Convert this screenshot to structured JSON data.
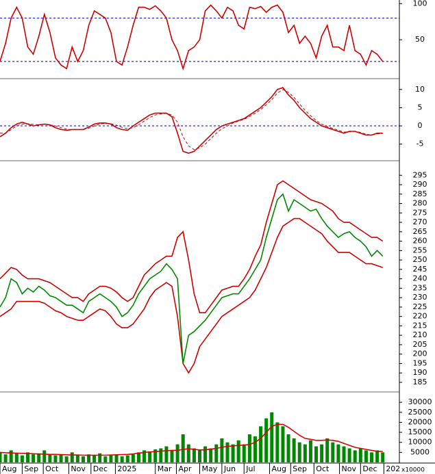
{
  "chart_data": [
    {
      "type": "line",
      "x": [
        0,
        5,
        10,
        15,
        20,
        25,
        30,
        35,
        40,
        45,
        50,
        55,
        60,
        65,
        70,
        75,
        80,
        85,
        90,
        95,
        100,
        105,
        110,
        115,
        120,
        125,
        130,
        135,
        140,
        145,
        150,
        155,
        160,
        165,
        170,
        175,
        180,
        185,
        190,
        195,
        200,
        205,
        210,
        215,
        220,
        225,
        230,
        235,
        240,
        245,
        250,
        255,
        260,
        265,
        270,
        275,
        280,
        285,
        290,
        295,
        300,
        305,
        310,
        315,
        320,
        325,
        330,
        335,
        340,
        345
      ],
      "xlim": [
        0,
        360
      ],
      "ylim": [
        0,
        105
      ],
      "yticks": [
        50,
        100
      ],
      "levels": [
        80,
        20
      ],
      "series": [
        {
          "color": "#cc0000",
          "values": [
            20,
            45,
            80,
            95,
            80,
            40,
            30,
            55,
            85,
            60,
            25,
            15,
            10,
            40,
            20,
            35,
            70,
            90,
            85,
            80,
            60,
            20,
            15,
            40,
            70,
            95,
            95,
            92,
            97,
            90,
            80,
            50,
            35,
            10,
            35,
            40,
            50,
            90,
            98,
            90,
            80,
            95,
            90,
            70,
            65,
            95,
            93,
            96,
            88,
            95,
            98,
            88,
            60,
            70,
            45,
            55,
            45,
            25,
            55,
            70,
            40,
            40,
            35,
            70,
            35,
            30,
            15,
            35,
            30,
            20
          ]
        }
      ]
    },
    {
      "type": "line",
      "x": [
        0,
        5,
        10,
        15,
        20,
        25,
        30,
        35,
        40,
        45,
        50,
        55,
        60,
        65,
        70,
        75,
        80,
        85,
        90,
        95,
        100,
        105,
        110,
        115,
        120,
        125,
        130,
        135,
        140,
        145,
        150,
        155,
        160,
        165,
        170,
        175,
        180,
        185,
        190,
        195,
        200,
        205,
        210,
        215,
        220,
        225,
        230,
        235,
        240,
        245,
        250,
        255,
        260,
        265,
        270,
        275,
        280,
        285,
        290,
        295,
        300,
        305,
        310,
        315,
        320,
        325,
        330,
        335,
        340,
        345
      ],
      "xlim": [
        0,
        360
      ],
      "ylim": [
        -9,
        12.4
      ],
      "yticks": [
        -5,
        0,
        5,
        10
      ],
      "levels": [
        0
      ],
      "series": [
        {
          "color": "#cc0000",
          "values": [
            -3,
            -2,
            -0.5,
            0.5,
            1,
            0.5,
            0,
            0.3,
            0.5,
            0.3,
            -0.5,
            -1,
            -1.2,
            -1,
            -1,
            -1,
            -0.3,
            0.5,
            0.8,
            0.8,
            0.5,
            -0.5,
            -1,
            -1.2,
            0,
            1,
            2,
            3,
            3.5,
            3.5,
            3.5,
            2.5,
            -2,
            -7,
            -7.5,
            -7,
            -5.5,
            -4,
            -2.5,
            -1,
            0,
            0.5,
            1,
            1.5,
            2,
            3,
            4,
            5,
            6.5,
            8,
            10,
            10.5,
            8.5,
            7,
            5,
            3.5,
            2,
            1,
            0,
            -0.5,
            -1,
            -1.5,
            -2,
            -1.5,
            -1.5,
            -2,
            -2.5,
            -2.5,
            -2,
            -2
          ]
        },
        {
          "color": "#cc0000",
          "dashed": true,
          "values": [
            -2,
            -2,
            -1,
            0,
            0.5,
            0.6,
            0.4,
            0.3,
            0.4,
            0.3,
            0,
            -0.5,
            -0.9,
            -1,
            -1,
            -1,
            -0.6,
            0,
            0.5,
            0.7,
            0.6,
            0.2,
            -0.4,
            -0.8,
            -0.5,
            0.3,
            1.3,
            2.3,
            3,
            3.3,
            3.4,
            3,
            1,
            -3,
            -5.5,
            -6.5,
            -6,
            -5,
            -3.5,
            -2,
            -0.8,
            0,
            0.8,
            1.3,
            1.8,
            2.6,
            3.5,
            4.5,
            5.8,
            7.2,
            9,
            10,
            9.2,
            7.8,
            6,
            4.3,
            2.8,
            1.5,
            0.5,
            -0.2,
            -0.7,
            -1.2,
            -1.7,
            -1.6,
            -1.5,
            -1.8,
            -2.3,
            -2.5,
            -2.2,
            -2.1
          ]
        }
      ]
    },
    {
      "type": "line",
      "x": [
        0,
        5,
        10,
        15,
        20,
        25,
        30,
        35,
        40,
        45,
        50,
        55,
        60,
        65,
        70,
        75,
        80,
        85,
        90,
        95,
        100,
        105,
        110,
        115,
        120,
        125,
        130,
        135,
        140,
        145,
        150,
        155,
        160,
        165,
        170,
        175,
        180,
        185,
        190,
        195,
        200,
        205,
        210,
        215,
        220,
        225,
        230,
        235,
        240,
        245,
        250,
        255,
        260,
        265,
        270,
        275,
        280,
        285,
        290,
        295,
        300,
        305,
        310,
        315,
        320,
        325,
        330,
        335,
        340,
        345
      ],
      "xlim": [
        0,
        360
      ],
      "ylim": [
        181,
        302
      ],
      "yticks": [
        185,
        190,
        195,
        200,
        205,
        210,
        215,
        220,
        225,
        230,
        235,
        240,
        245,
        250,
        255,
        260,
        265,
        270,
        275,
        280,
        285,
        290,
        295
      ],
      "series": [
        {
          "color": "#cc0000",
          "values": [
            240,
            243,
            246,
            245,
            242,
            240,
            240,
            240,
            239,
            238,
            236,
            234,
            232,
            230,
            230,
            228,
            232,
            234,
            236,
            236,
            235,
            233,
            230,
            228,
            230,
            236,
            242,
            245,
            248,
            250,
            252,
            252,
            262,
            265,
            250,
            232,
            222,
            222,
            226,
            230,
            234,
            235,
            236,
            236,
            240,
            245,
            252,
            258,
            270,
            280,
            290,
            292,
            290,
            288,
            286,
            284,
            282,
            281,
            280,
            278,
            276,
            272,
            270,
            270,
            268,
            266,
            264,
            262,
            262,
            260
          ]
        },
        {
          "color": "#cc0000",
          "values": [
            220,
            222,
            224,
            228,
            228,
            228,
            228,
            228,
            227,
            225,
            223,
            222,
            220,
            219,
            218,
            218,
            220,
            222,
            224,
            223,
            220,
            216,
            214,
            214,
            216,
            220,
            224,
            230,
            234,
            236,
            238,
            236,
            220,
            195,
            190,
            195,
            204,
            208,
            212,
            216,
            220,
            222,
            224,
            226,
            228,
            230,
            234,
            240,
            246,
            254,
            262,
            268,
            270,
            272,
            272,
            270,
            268,
            266,
            264,
            260,
            257,
            254,
            254,
            254,
            252,
            250,
            248,
            248,
            247,
            246
          ]
        },
        {
          "color": "#008800",
          "values": [
            225,
            230,
            240,
            238,
            232,
            235,
            233,
            236,
            234,
            231,
            230,
            228,
            226,
            226,
            224,
            222,
            228,
            230,
            232,
            230,
            228,
            225,
            220,
            222,
            226,
            232,
            236,
            240,
            242,
            244,
            248,
            245,
            240,
            195,
            210,
            212,
            215,
            218,
            222,
            226,
            230,
            231,
            232,
            232,
            236,
            240,
            245,
            250,
            262,
            272,
            282,
            285,
            276,
            282,
            280,
            278,
            276,
            277,
            272,
            268,
            265,
            262,
            264,
            265,
            262,
            260,
            257,
            252,
            255,
            252
          ]
        }
      ]
    },
    {
      "type": "bar",
      "x": [
        0,
        5,
        10,
        15,
        20,
        25,
        30,
        35,
        40,
        45,
        50,
        55,
        60,
        65,
        70,
        75,
        80,
        85,
        90,
        95,
        100,
        105,
        110,
        115,
        120,
        125,
        130,
        135,
        140,
        145,
        150,
        155,
        160,
        165,
        170,
        175,
        180,
        185,
        190,
        195,
        200,
        205,
        210,
        215,
        220,
        225,
        230,
        235,
        240,
        245,
        250,
        255,
        260,
        265,
        270,
        275,
        280,
        285,
        290,
        295,
        300,
        305,
        310,
        315,
        320,
        325,
        330,
        335,
        340,
        345
      ],
      "xlim": [
        0,
        360
      ],
      "ylim": [
        0,
        34500
      ],
      "yticks": [
        5000,
        10000,
        15000,
        20000,
        25000,
        30000
      ],
      "unit": "x10000",
      "xticks": [
        {
          "value": 0,
          "label": "Aug"
        },
        {
          "value": 20,
          "label": "Sep"
        },
        {
          "value": 39,
          "label": "Oct"
        },
        {
          "value": 62,
          "label": "Nov"
        },
        {
          "value": 82,
          "label": "Dec"
        },
        {
          "value": 104,
          "label": "2025"
        },
        {
          "value": 140,
          "label": "Mar"
        },
        {
          "value": 159,
          "label": "Apr"
        },
        {
          "value": 180,
          "label": "May"
        },
        {
          "value": 200,
          "label": "Jun"
        },
        {
          "value": 220,
          "label": "Jul"
        },
        {
          "value": 243,
          "label": "Aug"
        },
        {
          "value": 262,
          "label": "Sep"
        },
        {
          "value": 283,
          "label": "Oct"
        },
        {
          "value": 306,
          "label": "Nov"
        },
        {
          "value": 325,
          "label": "Dec"
        },
        {
          "value": 346,
          "label": "202"
        }
      ],
      "series": [
        {
          "color": "#008800",
          "values": [
            5000,
            4000,
            6000,
            4500,
            3500,
            5000,
            4000,
            4500,
            6000,
            4000,
            3500,
            4000,
            3000,
            5000,
            3500,
            3000,
            4000,
            3500,
            4500,
            3000,
            3500,
            4000,
            3000,
            3500,
            4000,
            5000,
            6000,
            5500,
            6500,
            7000,
            8000,
            6000,
            9000,
            14000,
            9000,
            7000,
            6000,
            8000,
            7000,
            9000,
            12000,
            10000,
            9000,
            11000,
            9000,
            14000,
            13000,
            18000,
            22000,
            25000,
            20000,
            18000,
            14000,
            12000,
            10000,
            9000,
            11000,
            8000,
            9000,
            12000,
            10000,
            9000,
            8000,
            7000,
            6000,
            7000,
            6000,
            5000,
            6000,
            5000
          ]
        },
        {
          "color": "#dd0000",
          "type": "line",
          "values": [
            5000,
            4800,
            4700,
            4600,
            4500,
            4400,
            4300,
            4200,
            4100,
            4000,
            4000,
            3900,
            3800,
            3700,
            3700,
            3600,
            3600,
            3600,
            3600,
            3600,
            3700,
            3800,
            3900,
            4000,
            4200,
            4600,
            5000,
            5200,
            5400,
            5600,
            5800,
            6000,
            6000,
            6500,
            6800,
            6500,
            6200,
            6300,
            6600,
            7000,
            7500,
            8000,
            8200,
            8500,
            8600,
            9000,
            10000,
            12000,
            15000,
            18000,
            19000,
            19000,
            17500,
            15500,
            13500,
            12000,
            11500,
            11000,
            11000,
            11200,
            11000,
            10500,
            9500,
            8500,
            7500,
            7000,
            6500,
            6000,
            5500,
            5500
          ]
        }
      ]
    }
  ]
}
